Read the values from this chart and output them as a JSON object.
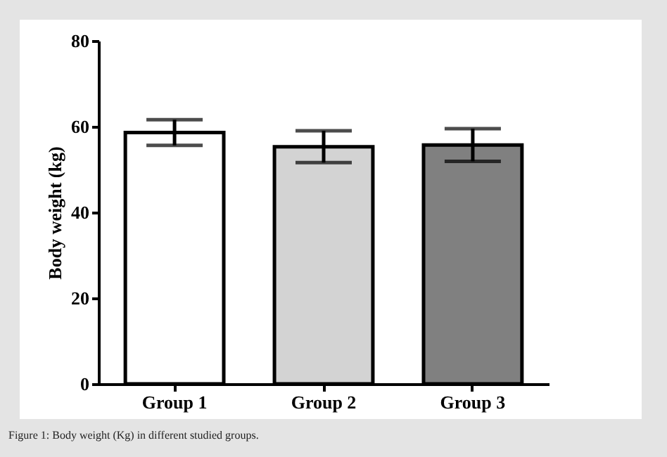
{
  "chart_data": {
    "type": "bar",
    "ylabel": "Body weight (kg)",
    "categories": [
      "Group 1",
      "Group 2",
      "Group 3"
    ],
    "values": [
      58.6,
      55.3,
      55.7
    ],
    "errors": [
      3.0,
      3.7,
      3.8
    ],
    "colors": [
      "#ffffff",
      "#d3d3d3",
      "#808080"
    ],
    "ylim": [
      0,
      80
    ],
    "yticks": [
      0,
      20,
      40,
      60,
      80
    ],
    "grid": false,
    "annotations": [
      "Figure 1: Body weight (Kg) in different studied groups."
    ]
  }
}
